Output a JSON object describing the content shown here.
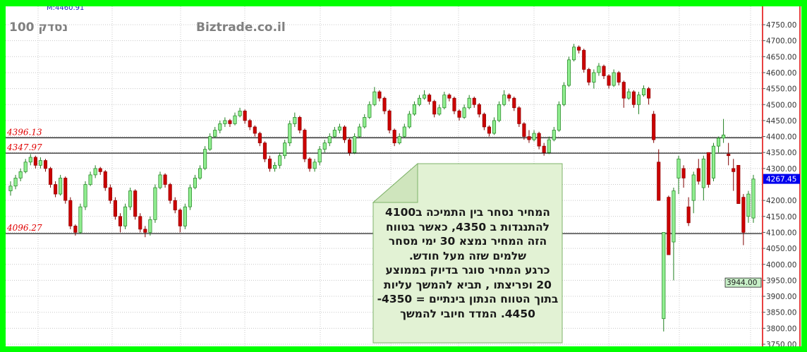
{
  "header": {
    "title": "100 נסדק",
    "site": "Biztrade.co.il",
    "marker_label": "M:4460.91"
  },
  "note": {
    "lines": [
      "המחיר נסחר  בין התמיכה ב4100",
      "להתנגדות  ב  4350, כאשר בטווח",
      "הזה  המחיר  נמצא 30 ימי מסחר",
      "שלמים  שזה מעל  חודש.",
      "כרגע  המחיר  סוגר  בדיוק  בממוצע",
      "20 ופריצתו , תביא  להמשך עליות",
      "בתוך הטווח הנתון בינתיים =  4350-",
      "4450. המדד חיובי להמשך"
    ]
  },
  "colors": {
    "up": "#90ee90",
    "up_border": "#208020",
    "down": "#cc0000",
    "border": "#00ff00",
    "axis_line": "#e00000",
    "level_label": "#e00000",
    "last_price_bg": "#0000ee",
    "ma_bg": "#c8f0c8"
  },
  "chart_data": {
    "type": "candlestick",
    "ylim": [
      3750,
      4750
    ],
    "yticks": [
      "4750.00",
      "4700.00",
      "4650.00",
      "4600.00",
      "4550.00",
      "4500.00",
      "4450.00",
      "4400.00",
      "4350.00",
      "4300.00",
      "4200.00",
      "4150.00",
      "4100.00",
      "4050.00",
      "4000.00",
      "3950.00",
      "3900.00",
      "3850.00",
      "3800.00",
      "3750.00"
    ],
    "grid": true,
    "levels": [
      {
        "value": 4396.13,
        "label": "4396.13"
      },
      {
        "value": 4347.97,
        "label": "4347.97"
      },
      {
        "value": 4096.27,
        "label": "4096.27"
      }
    ],
    "last_price": {
      "value": 4267.45,
      "label": "4267.45"
    },
    "ma_marker": {
      "value": 3944.0,
      "label": "3944.00"
    },
    "ohlc": [
      [
        4230,
        4260,
        4215,
        4245
      ],
      [
        4245,
        4280,
        4235,
        4270
      ],
      [
        4270,
        4300,
        4260,
        4290
      ],
      [
        4290,
        4330,
        4285,
        4320
      ],
      [
        4320,
        4345,
        4310,
        4335
      ],
      [
        4335,
        4340,
        4300,
        4310
      ],
      [
        4310,
        4335,
        4300,
        4325
      ],
      [
        4325,
        4330,
        4290,
        4300
      ],
      [
        4300,
        4305,
        4240,
        4250
      ],
      [
        4250,
        4260,
        4210,
        4220
      ],
      [
        4220,
        4280,
        4215,
        4270
      ],
      [
        4270,
        4275,
        4190,
        4200
      ],
      [
        4200,
        4210,
        4110,
        4120
      ],
      [
        4120,
        4125,
        4090,
        4100
      ],
      [
        4100,
        4190,
        4095,
        4180
      ],
      [
        4180,
        4260,
        4170,
        4250
      ],
      [
        4250,
        4290,
        4245,
        4280
      ],
      [
        4280,
        4310,
        4270,
        4300
      ],
      [
        4300,
        4305,
        4280,
        4290
      ],
      [
        4290,
        4295,
        4230,
        4240
      ],
      [
        4240,
        4250,
        4190,
        4200
      ],
      [
        4200,
        4210,
        4140,
        4150
      ],
      [
        4150,
        4160,
        4100,
        4120
      ],
      [
        4120,
        4190,
        4110,
        4180
      ],
      [
        4180,
        4240,
        4170,
        4230
      ],
      [
        4230,
        4235,
        4140,
        4150
      ],
      [
        4150,
        4160,
        4100,
        4110
      ],
      [
        4110,
        4120,
        4085,
        4100
      ],
      [
        4100,
        4150,
        4090,
        4140
      ],
      [
        4140,
        4250,
        4130,
        4240
      ],
      [
        4240,
        4290,
        4235,
        4280
      ],
      [
        4280,
        4285,
        4240,
        4250
      ],
      [
        4250,
        4255,
        4190,
        4200
      ],
      [
        4200,
        4210,
        4160,
        4170
      ],
      [
        4170,
        4175,
        4100,
        4120
      ],
      [
        4120,
        4190,
        4110,
        4180
      ],
      [
        4180,
        4250,
        4170,
        4240
      ],
      [
        4240,
        4280,
        4235,
        4270
      ],
      [
        4270,
        4310,
        4265,
        4300
      ],
      [
        4300,
        4370,
        4295,
        4360
      ],
      [
        4360,
        4410,
        4355,
        4400
      ],
      [
        4400,
        4430,
        4395,
        4420
      ],
      [
        4420,
        4450,
        4410,
        4440
      ],
      [
        4440,
        4460,
        4430,
        4450
      ],
      [
        4450,
        4455,
        4430,
        4440
      ],
      [
        4440,
        4475,
        4435,
        4465
      ],
      [
        4465,
        4490,
        4460,
        4480
      ],
      [
        4480,
        4485,
        4440,
        4450
      ],
      [
        4450,
        4455,
        4420,
        4430
      ],
      [
        4430,
        4435,
        4400,
        4410
      ],
      [
        4410,
        4415,
        4370,
        4380
      ],
      [
        4380,
        4385,
        4320,
        4330
      ],
      [
        4330,
        4340,
        4290,
        4300
      ],
      [
        4300,
        4320,
        4290,
        4310
      ],
      [
        4310,
        4350,
        4300,
        4340
      ],
      [
        4340,
        4390,
        4330,
        4380
      ],
      [
        4380,
        4450,
        4370,
        4440
      ],
      [
        4440,
        4475,
        4430,
        4460
      ],
      [
        4460,
        4465,
        4410,
        4420
      ],
      [
        4420,
        4425,
        4320,
        4330
      ],
      [
        4330,
        4335,
        4290,
        4300
      ],
      [
        4300,
        4330,
        4290,
        4320
      ],
      [
        4320,
        4370,
        4310,
        4360
      ],
      [
        4360,
        4390,
        4350,
        4380
      ],
      [
        4380,
        4410,
        4370,
        4400
      ],
      [
        4400,
        4430,
        4395,
        4420
      ],
      [
        4420,
        4440,
        4410,
        4430
      ],
      [
        4430,
        4435,
        4380,
        4390
      ],
      [
        4390,
        4395,
        4340,
        4350
      ],
      [
        4350,
        4410,
        4345,
        4400
      ],
      [
        4400,
        4440,
        4395,
        4430
      ],
      [
        4430,
        4470,
        4425,
        4460
      ],
      [
        4460,
        4510,
        4455,
        4500
      ],
      [
        4500,
        4555,
        4495,
        4540
      ],
      [
        4540,
        4545,
        4510,
        4520
      ],
      [
        4520,
        4525,
        4470,
        4480
      ],
      [
        4480,
        4485,
        4410,
        4420
      ],
      [
        4420,
        4425,
        4370,
        4380
      ],
      [
        4380,
        4410,
        4375,
        4400
      ],
      [
        4400,
        4440,
        4395,
        4430
      ],
      [
        4430,
        4480,
        4425,
        4470
      ],
      [
        4470,
        4510,
        4465,
        4500
      ],
      [
        4500,
        4530,
        4495,
        4520
      ],
      [
        4520,
        4545,
        4515,
        4530
      ],
      [
        4530,
        4535,
        4500,
        4510
      ],
      [
        4510,
        4515,
        4460,
        4470
      ],
      [
        4470,
        4500,
        4465,
        4490
      ],
      [
        4490,
        4540,
        4485,
        4530
      ],
      [
        4530,
        4535,
        4510,
        4520
      ],
      [
        4520,
        4525,
        4470,
        4480
      ],
      [
        4480,
        4485,
        4450,
        4460
      ],
      [
        4460,
        4500,
        4455,
        4490
      ],
      [
        4490,
        4530,
        4485,
        4520
      ],
      [
        4520,
        4525,
        4490,
        4500
      ],
      [
        4500,
        4505,
        4460,
        4470
      ],
      [
        4470,
        4475,
        4420,
        4430
      ],
      [
        4430,
        4435,
        4400,
        4410
      ],
      [
        4410,
        4460,
        4405,
        4450
      ],
      [
        4450,
        4510,
        4445,
        4500
      ],
      [
        4500,
        4545,
        4495,
        4530
      ],
      [
        4530,
        4535,
        4510,
        4520
      ],
      [
        4520,
        4525,
        4480,
        4490
      ],
      [
        4490,
        4495,
        4430,
        4440
      ],
      [
        4440,
        4445,
        4390,
        4400
      ],
      [
        4400,
        4420,
        4380,
        4390
      ],
      [
        4390,
        4420,
        4385,
        4410
      ],
      [
        4410,
        4415,
        4360,
        4370
      ],
      [
        4370,
        4380,
        4340,
        4350
      ],
      [
        4350,
        4400,
        4345,
        4390
      ],
      [
        4390,
        4430,
        4385,
        4420
      ],
      [
        4420,
        4510,
        4415,
        4500
      ],
      [
        4500,
        4570,
        4495,
        4560
      ],
      [
        4560,
        4650,
        4555,
        4640
      ],
      [
        4640,
        4690,
        4635,
        4680
      ],
      [
        4680,
        4685,
        4660,
        4670
      ],
      [
        4670,
        4675,
        4600,
        4610
      ],
      [
        4610,
        4615,
        4560,
        4570
      ],
      [
        4570,
        4610,
        4550,
        4600
      ],
      [
        4600,
        4630,
        4590,
        4620
      ],
      [
        4620,
        4625,
        4580,
        4590
      ],
      [
        4590,
        4595,
        4550,
        4560
      ],
      [
        4560,
        4610,
        4555,
        4600
      ],
      [
        4600,
        4605,
        4560,
        4570
      ],
      [
        4570,
        4575,
        4490,
        4520
      ],
      [
        4520,
        4550,
        4515,
        4540
      ],
      [
        4540,
        4545,
        4490,
        4500
      ],
      [
        4500,
        4540,
        4470,
        4530
      ],
      [
        4530,
        4560,
        4525,
        4550
      ],
      [
        4550,
        4555,
        4500,
        4520
      ],
      [
        4470,
        4480,
        4380,
        4390
      ],
      [
        4320,
        4360,
        4200,
        4200
      ],
      [
        3830,
        4100,
        3790,
        4100
      ],
      [
        4210,
        4215,
        4030,
        4030
      ],
      [
        4070,
        4240,
        3950,
        4230
      ],
      [
        4270,
        4340,
        4220,
        4330
      ],
      [
        4300,
        4310,
        4240,
        4270
      ],
      [
        4180,
        4210,
        4120,
        4130
      ],
      [
        4200,
        4290,
        4160,
        4280
      ],
      [
        4300,
        4330,
        4250,
        4260
      ],
      [
        4240,
        4340,
        4200,
        4330
      ],
      [
        4350,
        4350,
        4240,
        4250
      ],
      [
        4270,
        4380,
        4260,
        4370
      ],
      [
        4370,
        4400,
        4350,
        4395
      ],
      [
        4395,
        4455,
        4380,
        4405
      ],
      [
        4345,
        4380,
        4310,
        4340
      ],
      [
        4300,
        4330,
        4230,
        4290
      ],
      [
        4310,
        4310,
        4190,
        4190
      ],
      [
        4210,
        4220,
        4060,
        4100
      ],
      [
        4150,
        4230,
        4130,
        4220
      ],
      [
        4145,
        4280,
        4130,
        4267
      ]
    ]
  }
}
